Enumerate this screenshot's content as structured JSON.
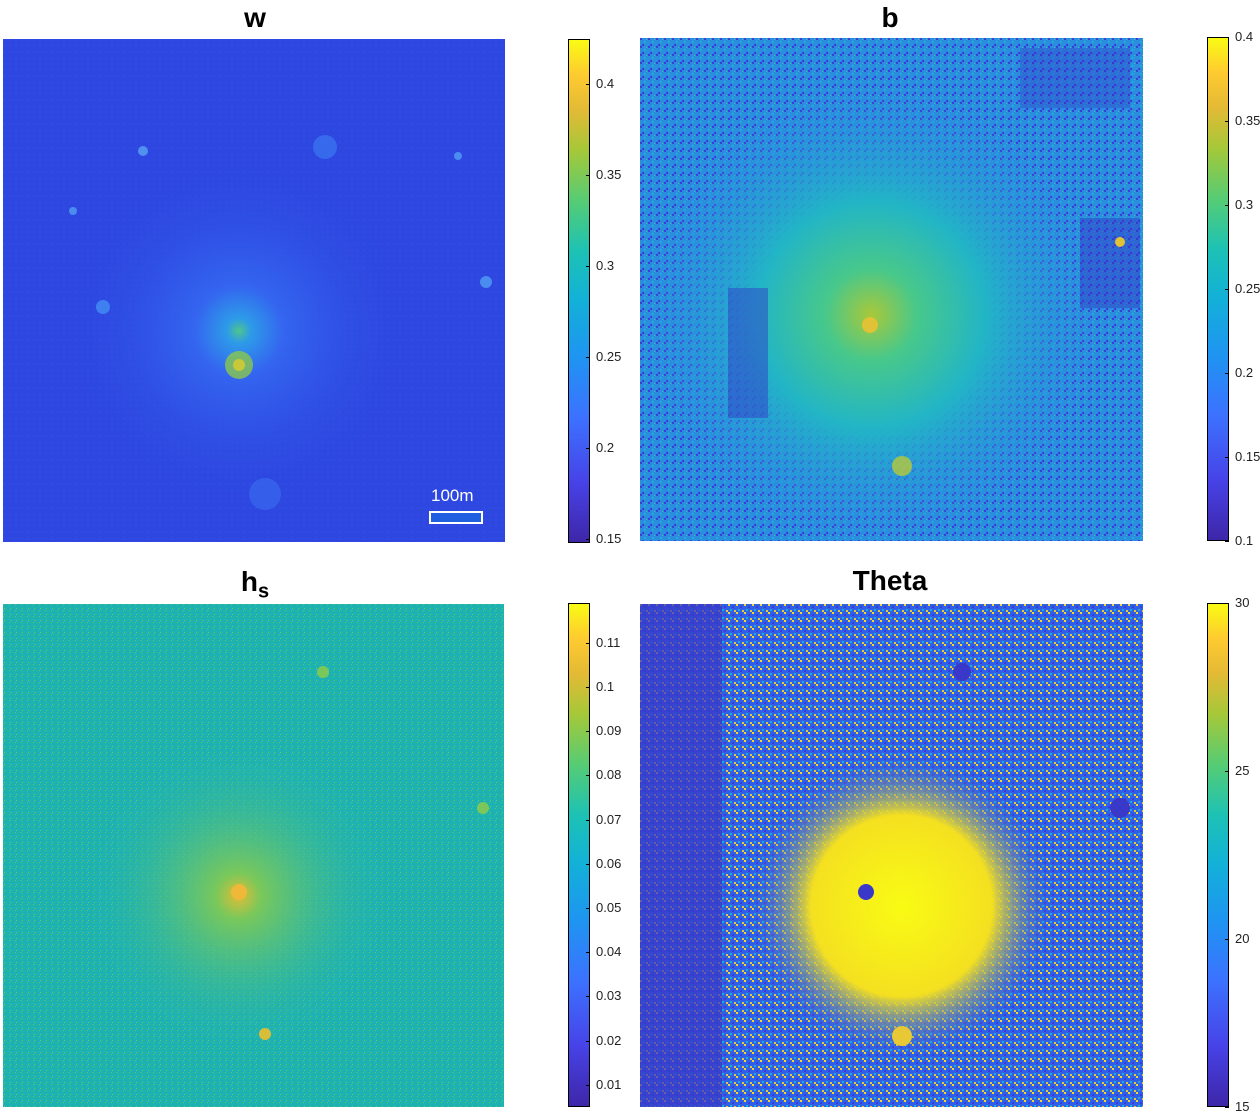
{
  "chart_data": [
    {
      "type": "heatmap",
      "title": "w",
      "colorbar_ticks": [
        "0.4",
        "0.35",
        "0.3",
        "0.25",
        "0.2",
        "0.15"
      ],
      "clim": [
        0.148,
        0.425
      ],
      "scale_bar": "100m"
    },
    {
      "type": "heatmap",
      "title": "b",
      "colorbar_ticks": [
        "0.4",
        "0.35",
        "0.3",
        "0.25",
        "0.2",
        "0.15",
        "0.1"
      ],
      "clim": [
        0.1,
        0.4
      ]
    },
    {
      "type": "heatmap",
      "title": "h",
      "title_subscript": "s",
      "colorbar_ticks": [
        "0.11",
        "0.1",
        "0.09",
        "0.08",
        "0.07",
        "0.06",
        "0.05",
        "0.04",
        "0.03",
        "0.02",
        "0.01"
      ],
      "clim": [
        0.005,
        0.119
      ]
    },
    {
      "type": "heatmap",
      "title": "Theta",
      "colorbar_ticks": [
        "30",
        "25",
        "20",
        "15"
      ],
      "clim": [
        15,
        30
      ]
    }
  ],
  "colors": {
    "parula_low": "#3e26a8",
    "parula_mid": "#1dc2b4",
    "parula_high": "#f9fb14",
    "w_background": "#2d47e0",
    "b_background": "#2c8ce0",
    "hs_background": "#1fb3b0",
    "theta_background": "#3060e8"
  }
}
